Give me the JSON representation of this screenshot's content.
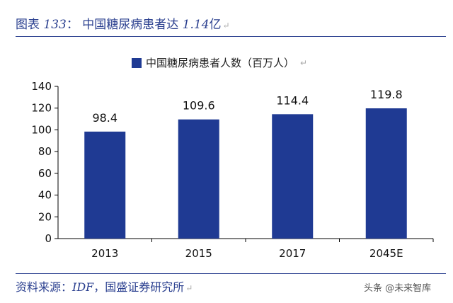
{
  "header": {
    "figure_label": "图表",
    "figure_number": "133",
    "colon": "：",
    "title_text": "中国糖尿病患者达",
    "title_number": "1.14",
    "title_unit": "亿",
    "return_mark": "↵"
  },
  "chart_data": {
    "type": "bar",
    "title": "",
    "categories": [
      "2013",
      "2015",
      "2017",
      "2045E"
    ],
    "series": [
      {
        "name": "中国糖尿病患者人数（百万人）",
        "values": [
          98.4,
          109.6,
          114.4,
          119.8
        ],
        "color": "#1f3a93"
      }
    ],
    "data_labels": [
      "98.4",
      "109.6",
      "114.4",
      "119.8"
    ],
    "ylim": [
      0,
      140
    ],
    "yticks": [
      0,
      20,
      40,
      60,
      80,
      100,
      120,
      140
    ],
    "xlabel": "",
    "ylabel": "",
    "legend_position": "top-center",
    "grid": false
  },
  "footer": {
    "source_label": "资料来源：",
    "source_idf": "IDF",
    "source_rest": "，国盛证券研究所"
  },
  "watermark": {
    "text": "头条 @未来智库"
  }
}
